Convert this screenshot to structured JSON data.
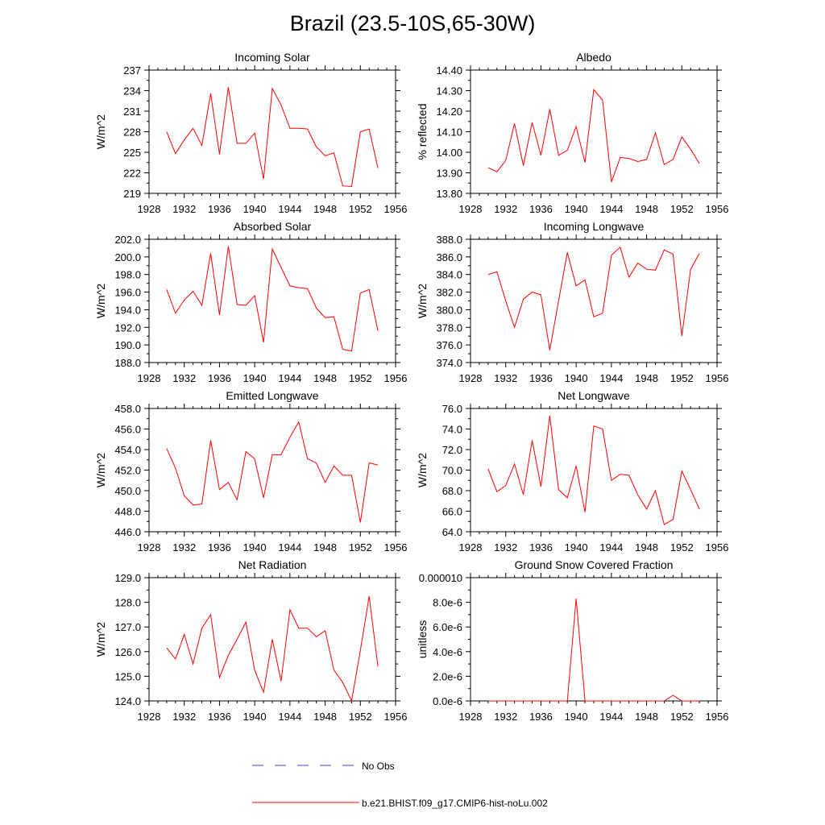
{
  "title": "Brazil (23.5-10S,65-30W)",
  "legend": {
    "obs_label": "No Obs",
    "model_label": "b.e21.BHIST.f09_g17.CMIP6-hist-noLu.002",
    "obs_color": "#3b3bd6",
    "model_color": "#ff0000"
  },
  "chart_data": [
    {
      "type": "line",
      "title": "Incoming Solar",
      "ylabel": "W/m^2",
      "xlim": [
        1928,
        1956
      ],
      "xticks": [
        "1928",
        "1932",
        "1936",
        "1940",
        "1944",
        "1948",
        "1952",
        "1956"
      ],
      "ylim": [
        219,
        237
      ],
      "yticks": [
        "219",
        "222",
        "225",
        "228",
        "231",
        "234",
        "237"
      ],
      "x": [
        1930,
        1931,
        1932,
        1933,
        1934,
        1935,
        1936,
        1937,
        1938,
        1939,
        1940,
        1941,
        1942,
        1943,
        1944,
        1945,
        1946,
        1947,
        1948,
        1949,
        1950,
        1951,
        1952,
        1953,
        1954
      ],
      "series": [
        {
          "name": "b.e21.BHIST.f09_g17.CMIP6-hist-noLu.002",
          "values": [
            228.0,
            224.8,
            226.8,
            228.5,
            226.0,
            233.6,
            224.7,
            234.5,
            226.3,
            226.3,
            227.8,
            221.1,
            234.3,
            231.9,
            228.5,
            228.5,
            228.4,
            225.8,
            224.5,
            224.9,
            220.1,
            220.0,
            228.0,
            228.4,
            222.7
          ]
        }
      ]
    },
    {
      "type": "line",
      "title": "Albedo",
      "ylabel": "% reflected",
      "xlim": [
        1928,
        1956
      ],
      "xticks": [
        "1928",
        "1932",
        "1936",
        "1940",
        "1944",
        "1948",
        "1952",
        "1956"
      ],
      "ylim": [
        13.8,
        14.4
      ],
      "yticks": [
        "13.80",
        "13.90",
        "14.00",
        "14.10",
        "14.20",
        "14.30",
        "14.40"
      ],
      "x": [
        1930,
        1931,
        1932,
        1933,
        1934,
        1935,
        1936,
        1937,
        1938,
        1939,
        1940,
        1941,
        1942,
        1943,
        1944,
        1945,
        1946,
        1947,
        1948,
        1949,
        1950,
        1951,
        1952,
        1953,
        1954
      ],
      "series": [
        {
          "name": "b.e21.BHIST.f09_g17.CMIP6-hist-noLu.002",
          "values": [
            13.925,
            13.905,
            13.96,
            14.14,
            13.935,
            14.145,
            13.985,
            14.21,
            13.985,
            14.01,
            14.125,
            13.95,
            14.305,
            14.255,
            13.855,
            13.975,
            13.97,
            13.955,
            13.965,
            14.095,
            13.94,
            13.965,
            14.075,
            14.015,
            13.945
          ]
        }
      ]
    },
    {
      "type": "line",
      "title": "Absorbed Solar",
      "ylabel": "W/m^2",
      "xlim": [
        1928,
        1956
      ],
      "xticks": [
        "1928",
        "1932",
        "1936",
        "1940",
        "1944",
        "1948",
        "1952",
        "1956"
      ],
      "ylim": [
        188,
        202
      ],
      "yticks": [
        "188.0",
        "190.0",
        "192.0",
        "194.0",
        "196.0",
        "198.0",
        "200.0",
        "202.0"
      ],
      "x": [
        1930,
        1931,
        1932,
        1933,
        1934,
        1935,
        1936,
        1937,
        1938,
        1939,
        1940,
        1941,
        1942,
        1943,
        1944,
        1945,
        1946,
        1947,
        1948,
        1949,
        1950,
        1951,
        1952,
        1953,
        1954
      ],
      "series": [
        {
          "name": "b.e21.BHIST.f09_g17.CMIP6-hist-noLu.002",
          "values": [
            196.3,
            193.6,
            195.1,
            196.1,
            194.5,
            200.4,
            193.4,
            201.2,
            194.6,
            194.5,
            195.6,
            190.3,
            200.9,
            198.8,
            196.7,
            196.5,
            196.4,
            194.2,
            193.1,
            193.2,
            189.5,
            189.3,
            195.9,
            196.3,
            191.6
          ]
        }
      ]
    },
    {
      "type": "line",
      "title": "Incoming Longwave",
      "ylabel": "W/m^2",
      "xlim": [
        1928,
        1956
      ],
      "xticks": [
        "1928",
        "1932",
        "1936",
        "1940",
        "1944",
        "1948",
        "1952",
        "1956"
      ],
      "ylim": [
        374,
        388
      ],
      "yticks": [
        "374.0",
        "376.0",
        "378.0",
        "380.0",
        "382.0",
        "384.0",
        "386.0",
        "388.0"
      ],
      "x": [
        1930,
        1931,
        1932,
        1933,
        1934,
        1935,
        1936,
        1937,
        1938,
        1939,
        1940,
        1941,
        1942,
        1943,
        1944,
        1945,
        1946,
        1947,
        1948,
        1949,
        1950,
        1951,
        1952,
        1953,
        1954
      ],
      "series": [
        {
          "name": "b.e21.BHIST.f09_g17.CMIP6-hist-noLu.002",
          "values": [
            384.0,
            384.3,
            381.0,
            378.0,
            381.2,
            382.0,
            381.7,
            375.4,
            381.0,
            386.5,
            382.7,
            383.4,
            379.2,
            379.6,
            386.2,
            387.1,
            383.7,
            385.3,
            384.6,
            384.5,
            386.8,
            386.3,
            377.0,
            384.6,
            386.4
          ]
        }
      ]
    },
    {
      "type": "line",
      "title": "Emitted Longwave",
      "ylabel": "W/m^2",
      "xlim": [
        1928,
        1956
      ],
      "xticks": [
        "1928",
        "1932",
        "1936",
        "1940",
        "1944",
        "1948",
        "1952",
        "1956"
      ],
      "ylim": [
        446,
        458
      ],
      "yticks": [
        "446.0",
        "448.0",
        "450.0",
        "452.0",
        "454.0",
        "456.0",
        "458.0"
      ],
      "x": [
        1930,
        1931,
        1932,
        1933,
        1934,
        1935,
        1936,
        1937,
        1938,
        1939,
        1940,
        1941,
        1942,
        1943,
        1944,
        1945,
        1946,
        1947,
        1948,
        1949,
        1950,
        1951,
        1952,
        1953,
        1954
      ],
      "series": [
        {
          "name": "b.e21.BHIST.f09_g17.CMIP6-hist-noLu.002",
          "values": [
            454.1,
            452.2,
            449.5,
            448.6,
            448.7,
            454.9,
            450.1,
            450.8,
            449.1,
            453.8,
            453.1,
            449.3,
            453.5,
            453.5,
            455.2,
            456.7,
            453.1,
            452.7,
            450.8,
            452.4,
            451.5,
            451.5,
            446.9,
            452.7,
            452.5
          ]
        }
      ]
    },
    {
      "type": "line",
      "title": "Net Longwave",
      "ylabel": "W/m^2",
      "xlim": [
        1928,
        1956
      ],
      "xticks": [
        "1928",
        "1932",
        "1936",
        "1940",
        "1944",
        "1948",
        "1952",
        "1956"
      ],
      "ylim": [
        64,
        76
      ],
      "yticks": [
        "64.0",
        "66.0",
        "68.0",
        "70.0",
        "72.0",
        "74.0",
        "76.0"
      ],
      "x": [
        1930,
        1931,
        1932,
        1933,
        1934,
        1935,
        1936,
        1937,
        1938,
        1939,
        1940,
        1941,
        1942,
        1943,
        1944,
        1945,
        1946,
        1947,
        1948,
        1949,
        1950,
        1951,
        1952,
        1953,
        1954
      ],
      "series": [
        {
          "name": "b.e21.BHIST.f09_g17.CMIP6-hist-noLu.002",
          "values": [
            70.1,
            67.9,
            68.5,
            70.6,
            67.6,
            72.9,
            68.4,
            75.3,
            68.1,
            67.3,
            70.4,
            65.9,
            74.3,
            74.0,
            69.0,
            69.6,
            69.5,
            67.6,
            66.2,
            68.0,
            64.7,
            65.2,
            69.9,
            68.1,
            66.2
          ]
        }
      ]
    },
    {
      "type": "line",
      "title": "Net Radiation",
      "ylabel": "W/m^2",
      "xlim": [
        1928,
        1956
      ],
      "xticks": [
        "1928",
        "1932",
        "1936",
        "1940",
        "1944",
        "1948",
        "1952",
        "1956"
      ],
      "ylim": [
        124,
        129
      ],
      "yticks": [
        "124.0",
        "125.0",
        "126.0",
        "127.0",
        "128.0",
        "129.0"
      ],
      "x": [
        1930,
        1931,
        1932,
        1933,
        1934,
        1935,
        1936,
        1937,
        1938,
        1939,
        1940,
        1941,
        1942,
        1943,
        1944,
        1945,
        1946,
        1947,
        1948,
        1949,
        1950,
        1951,
        1952,
        1953,
        1954
      ],
      "series": [
        {
          "name": "b.e21.BHIST.f09_g17.CMIP6-hist-noLu.002",
          "values": [
            126.15,
            125.7,
            126.7,
            125.5,
            126.95,
            127.5,
            124.95,
            125.85,
            126.5,
            127.2,
            125.25,
            124.35,
            126.5,
            124.8,
            127.7,
            126.95,
            126.95,
            126.6,
            126.85,
            125.25,
            124.75,
            124.0,
            126.05,
            128.25,
            125.4
          ]
        }
      ]
    },
    {
      "type": "line",
      "title": "Ground Snow Covered Fraction",
      "ylabel": "unitless",
      "xlim": [
        1928,
        1956
      ],
      "xticks": [
        "1928",
        "1932",
        "1936",
        "1940",
        "1944",
        "1948",
        "1952",
        "1956"
      ],
      "ylim": [
        0,
        1e-05
      ],
      "yticks": [
        "0.0e-6",
        "2.0e-6",
        "4.0e-6",
        "6.0e-6",
        "8.0e-6",
        "0.000010"
      ],
      "x": [
        1930,
        1931,
        1932,
        1933,
        1934,
        1935,
        1936,
        1937,
        1938,
        1939,
        1940,
        1941,
        1942,
        1943,
        1944,
        1945,
        1946,
        1947,
        1948,
        1949,
        1950,
        1951,
        1952,
        1953,
        1954
      ],
      "series": [
        {
          "name": "b.e21.BHIST.f09_g17.CMIP6-hist-noLu.002",
          "values": [
            0,
            0,
            0,
            0,
            0,
            0,
            0,
            0,
            0,
            0,
            8.3e-06,
            0,
            0,
            0,
            0,
            0,
            0,
            0,
            0,
            0,
            0,
            4.5e-07,
            0,
            0,
            0
          ]
        }
      ]
    }
  ]
}
